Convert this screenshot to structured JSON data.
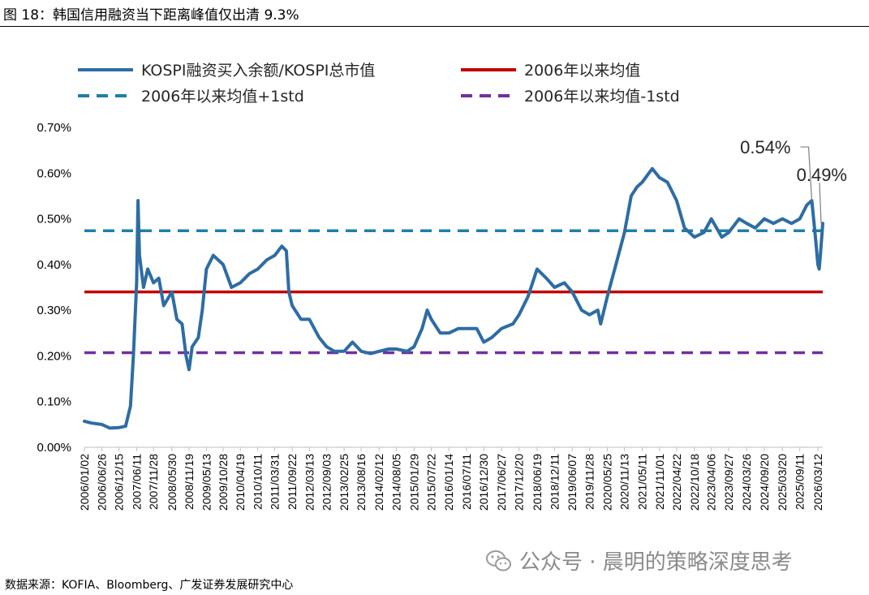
{
  "title": "图 18：韩国信用融资当下距离峰值仅出清 9.3%",
  "source": "数据来源：KOFIA、Bloomberg、广发证券发展研究中心",
  "watermark": "公众号 · 晨明的策略深度思考",
  "chart_data": {
    "type": "line",
    "legend_placement": "top",
    "grid": false,
    "ylim": [
      0,
      0.7
    ],
    "y_ticks": [
      "0.00%",
      "0.10%",
      "0.20%",
      "0.30%",
      "0.40%",
      "0.50%",
      "0.60%",
      "0.70%"
    ],
    "x_ticks": [
      "2006/01/02",
      "2006/06/26",
      "2006/12/15",
      "2007/06/11",
      "2007/11/28",
      "2008/05/30",
      "2008/11/19",
      "2009/05/13",
      "2009/10/28",
      "2010/04/19",
      "2010/10/11",
      "2011/03/31",
      "2011/09/22",
      "2012/03/13",
      "2012/09/03",
      "2013/02/25",
      "2013/08/16",
      "2014/02/12",
      "2014/08/05",
      "2015/01/29",
      "2015/07/22",
      "2016/01/14",
      "2016/07/11",
      "2016/12/30",
      "2017/06/27",
      "2017/12/20",
      "2018/06/19",
      "2018/12/11",
      "2019/06/07",
      "2019/11/28",
      "2020/05/25",
      "2020/11/13",
      "2021/05/11",
      "2021/11/01",
      "2022/04/22",
      "2022/10/18",
      "2023/04/06",
      "2023/09/27",
      "2024/03/26",
      "2024/09/20",
      "2025/03/20",
      "2025/09/11",
      "2026/03/12"
    ],
    "x_range": [
      "2006/01/02",
      "2026/04/30"
    ],
    "series": [
      {
        "name": "KOSPI融资买入余额/KOSPI总市值",
        "color": "#2e6ca4",
        "style": "solid",
        "points": [
          [
            "2006/01/02",
            0.057
          ],
          [
            "2006/03/15",
            0.053
          ],
          [
            "2006/06/26",
            0.05
          ],
          [
            "2006/09/15",
            0.042
          ],
          [
            "2006/12/15",
            0.043
          ],
          [
            "2007/02/20",
            0.046
          ],
          [
            "2007/04/10",
            0.09
          ],
          [
            "2007/05/10",
            0.2
          ],
          [
            "2007/06/11",
            0.36
          ],
          [
            "2007/06/25",
            0.54
          ],
          [
            "2007/07/10",
            0.42
          ],
          [
            "2007/08/20",
            0.35
          ],
          [
            "2007/10/01",
            0.39
          ],
          [
            "2007/11/28",
            0.36
          ],
          [
            "2008/01/20",
            0.37
          ],
          [
            "2008/03/10",
            0.31
          ],
          [
            "2008/05/30",
            0.34
          ],
          [
            "2008/07/20",
            0.28
          ],
          [
            "2008/09/10",
            0.27
          ],
          [
            "2008/10/20",
            0.2
          ],
          [
            "2008/11/19",
            0.17
          ],
          [
            "2008/12/20",
            0.22
          ],
          [
            "2009/02/20",
            0.24
          ],
          [
            "2009/04/01",
            0.3
          ],
          [
            "2009/05/13",
            0.39
          ],
          [
            "2009/07/20",
            0.42
          ],
          [
            "2009/10/28",
            0.4
          ],
          [
            "2010/01/20",
            0.35
          ],
          [
            "2010/04/19",
            0.36
          ],
          [
            "2010/07/20",
            0.38
          ],
          [
            "2010/10/11",
            0.39
          ],
          [
            "2011/01/10",
            0.41
          ],
          [
            "2011/03/31",
            0.42
          ],
          [
            "2011/06/10",
            0.44
          ],
          [
            "2011/07/25",
            0.43
          ],
          [
            "2011/08/20",
            0.34
          ],
          [
            "2011/09/22",
            0.31
          ],
          [
            "2011/12/20",
            0.28
          ],
          [
            "2012/03/13",
            0.28
          ],
          [
            "2012/06/20",
            0.24
          ],
          [
            "2012/09/03",
            0.22
          ],
          [
            "2012/11/20",
            0.21
          ],
          [
            "2013/02/25",
            0.21
          ],
          [
            "2013/05/20",
            0.23
          ],
          [
            "2013/08/16",
            0.21
          ],
          [
            "2013/11/20",
            0.205
          ],
          [
            "2014/02/12",
            0.21
          ],
          [
            "2014/05/20",
            0.215
          ],
          [
            "2014/08/05",
            0.215
          ],
          [
            "2014/11/20",
            0.21
          ],
          [
            "2015/01/29",
            0.22
          ],
          [
            "2015/04/20",
            0.26
          ],
          [
            "2015/06/10",
            0.3
          ],
          [
            "2015/07/22",
            0.28
          ],
          [
            "2015/10/20",
            0.25
          ],
          [
            "2016/01/14",
            0.25
          ],
          [
            "2016/04/20",
            0.26
          ],
          [
            "2016/07/11",
            0.26
          ],
          [
            "2016/10/20",
            0.26
          ],
          [
            "2016/12/30",
            0.23
          ],
          [
            "2017/03/20",
            0.24
          ],
          [
            "2017/06/27",
            0.26
          ],
          [
            "2017/10/20",
            0.27
          ],
          [
            "2017/12/20",
            0.29
          ],
          [
            "2018/03/20",
            0.33
          ],
          [
            "2018/06/19",
            0.39
          ],
          [
            "2018/09/20",
            0.37
          ],
          [
            "2018/12/11",
            0.35
          ],
          [
            "2019/03/20",
            0.36
          ],
          [
            "2019/06/07",
            0.34
          ],
          [
            "2019/09/10",
            0.3
          ],
          [
            "2019/11/28",
            0.29
          ],
          [
            "2020/02/20",
            0.3
          ],
          [
            "2020/03/19",
            0.27
          ],
          [
            "2020/05/25",
            0.33
          ],
          [
            "2020/08/20",
            0.4
          ],
          [
            "2020/11/13",
            0.47
          ],
          [
            "2021/01/20",
            0.55
          ],
          [
            "2021/03/20",
            0.57
          ],
          [
            "2021/05/11",
            0.58
          ],
          [
            "2021/08/20",
            0.61
          ],
          [
            "2021/11/01",
            0.59
          ],
          [
            "2022/01/20",
            0.58
          ],
          [
            "2022/04/22",
            0.54
          ],
          [
            "2022/07/10",
            0.48
          ],
          [
            "2022/10/18",
            0.46
          ],
          [
            "2023/01/20",
            0.47
          ],
          [
            "2023/04/06",
            0.5
          ],
          [
            "2023/07/20",
            0.46
          ],
          [
            "2023/09/27",
            0.47
          ],
          [
            "2024/01/10",
            0.5
          ],
          [
            "2024/03/26",
            0.49
          ],
          [
            "2024/06/20",
            0.48
          ],
          [
            "2024/09/20",
            0.5
          ],
          [
            "2024/12/20",
            0.49
          ],
          [
            "2025/03/20",
            0.5
          ],
          [
            "2025/06/20",
            0.49
          ],
          [
            "2025/09/11",
            0.5
          ],
          [
            "2025/11/20",
            0.53
          ],
          [
            "2026/01/10",
            0.54
          ],
          [
            "2026/02/20",
            0.45
          ],
          [
            "2026/03/12",
            0.4
          ],
          [
            "2026/03/25",
            0.39
          ],
          [
            "2026/04/10",
            0.43
          ],
          [
            "2026/04/30",
            0.49
          ]
        ]
      },
      {
        "name": "2006年以来均值",
        "color": "#c00000",
        "style": "solid",
        "value": 0.34
      },
      {
        "name": "2006年以来均值+1std",
        "color": "#1f7fa8",
        "style": "dashed",
        "value": 0.474
      },
      {
        "name": "2006年以来均值-1std",
        "color": "#7030a0",
        "style": "dashed",
        "value": 0.207
      }
    ],
    "annotations": [
      {
        "text": "0.54%",
        "value": 0.54,
        "date": "2026/01/10"
      },
      {
        "text": "0.49%",
        "value": 0.49,
        "date": "2026/04/30"
      }
    ]
  }
}
